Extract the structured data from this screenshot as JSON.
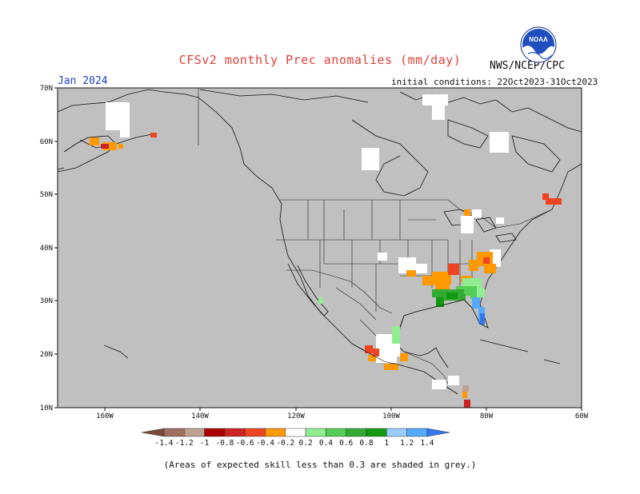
{
  "header": {
    "title": "CFSv2 monthly Prec anomalies (mm/day)",
    "organization": "NWS/NCEP/CPC",
    "logo_text": "NOAA",
    "target_month": "Jan 2024",
    "initial_conditions": "initial conditions: 22Oct2023-31Oct2023"
  },
  "map": {
    "region": "North America",
    "background_color": "#c0c0c0",
    "lat_labels": [
      "70N",
      "60N",
      "50N",
      "40N",
      "30N",
      "20N",
      "10N"
    ],
    "lon_labels": [
      "160W",
      "140W",
      "120W",
      "100W",
      "80W",
      "60W"
    ]
  },
  "colorbar": {
    "labels": [
      "-1.4",
      "-1.2",
      "-1",
      "-0.8",
      "-0.6",
      "-0.4",
      "-0.2",
      "0.2",
      "0.4",
      "0.6",
      "0.8",
      "1",
      "1.2",
      "1.4"
    ],
    "colors": [
      "#7a4a3a",
      "#a06e5e",
      "#c0a090",
      "#aa0000",
      "#cc2222",
      "#ee4422",
      "#ff9900",
      "#ffffff",
      "#90ee90",
      "#55cc55",
      "#33aa33",
      "#119911",
      "#99ccff",
      "#55aaff",
      "#3377ee"
    ]
  },
  "footnote": "(Areas of expected skill less than 0.3 are shaded in grey.)"
}
